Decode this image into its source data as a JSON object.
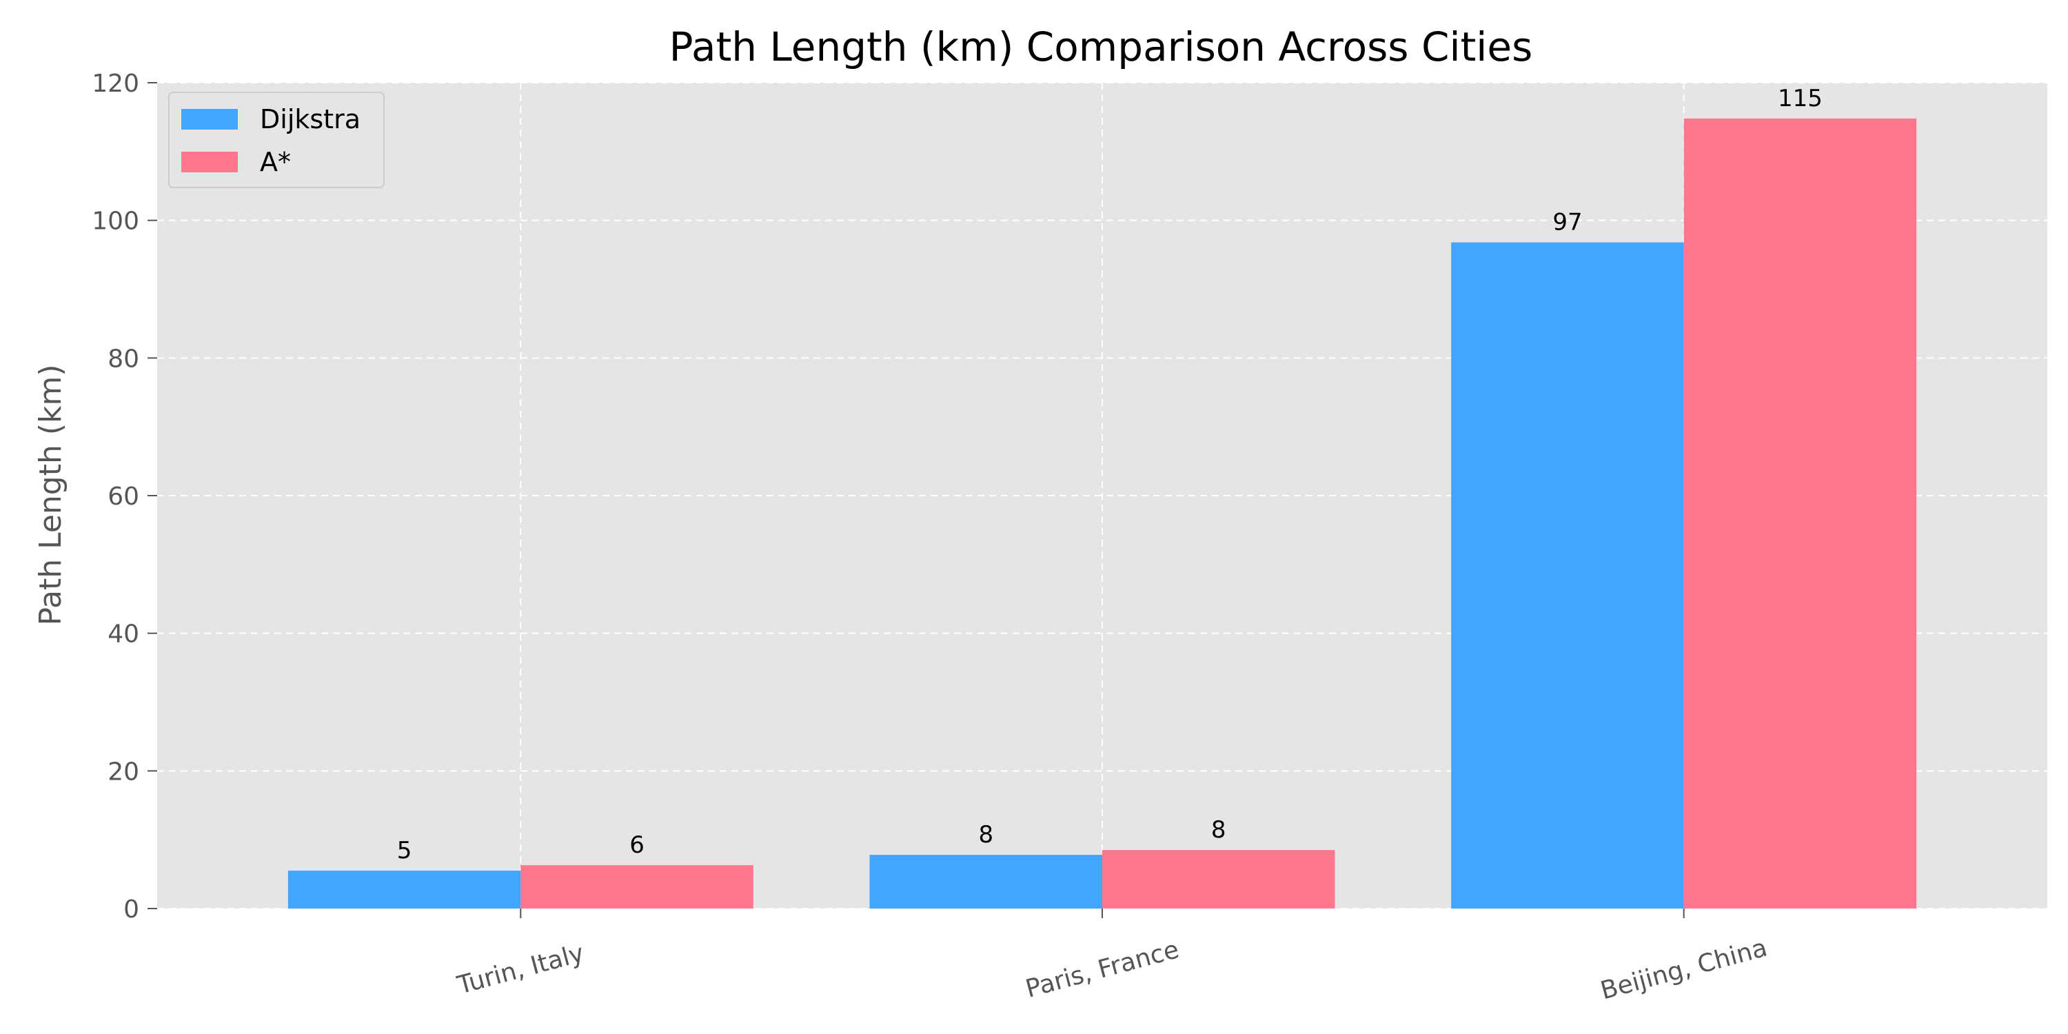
{
  "chart_data": {
    "type": "bar",
    "title": "Path Length (km) Comparison Across Cities",
    "xlabel": "",
    "ylabel": "Path Length (km)",
    "categories": [
      "Turin, Italy",
      "Paris, France",
      "Beijing, China"
    ],
    "series": [
      {
        "name": "Dijkstra",
        "values": [
          5.5,
          7.8,
          96.8
        ],
        "labels": [
          "5",
          "8",
          "97"
        ],
        "color": "#42a5ff"
      },
      {
        "name": "A*",
        "values": [
          6.3,
          8.5,
          114.8
        ],
        "labels": [
          "6",
          "8",
          "115"
        ],
        "color": "#ff778f"
      }
    ],
    "ylim": [
      0,
      120
    ],
    "yticks": [
      0,
      20,
      40,
      60,
      80,
      100,
      120
    ],
    "grid": true,
    "legend_position": "top-left",
    "background": "#e5e5e5"
  }
}
